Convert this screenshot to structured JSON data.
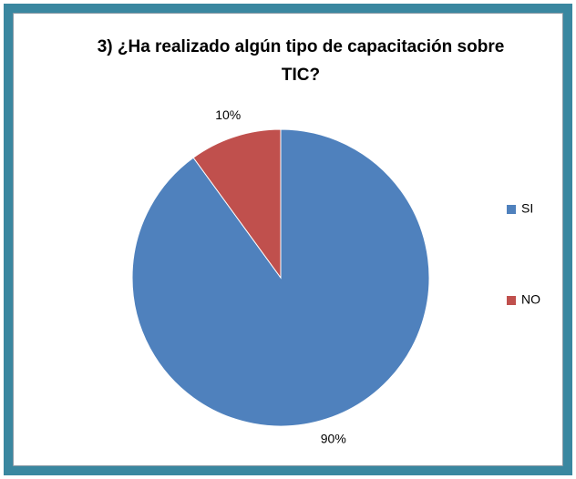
{
  "chart_data": {
    "type": "pie",
    "title": "3) ¿Ha realizado algún tipo de capacitación sobre TIC?",
    "categories": [
      "SI",
      "NO"
    ],
    "values": [
      90,
      10
    ],
    "value_labels": [
      "90%",
      "10%"
    ],
    "colors": [
      "#4f81bd",
      "#c0504d"
    ],
    "legend": "right"
  }
}
